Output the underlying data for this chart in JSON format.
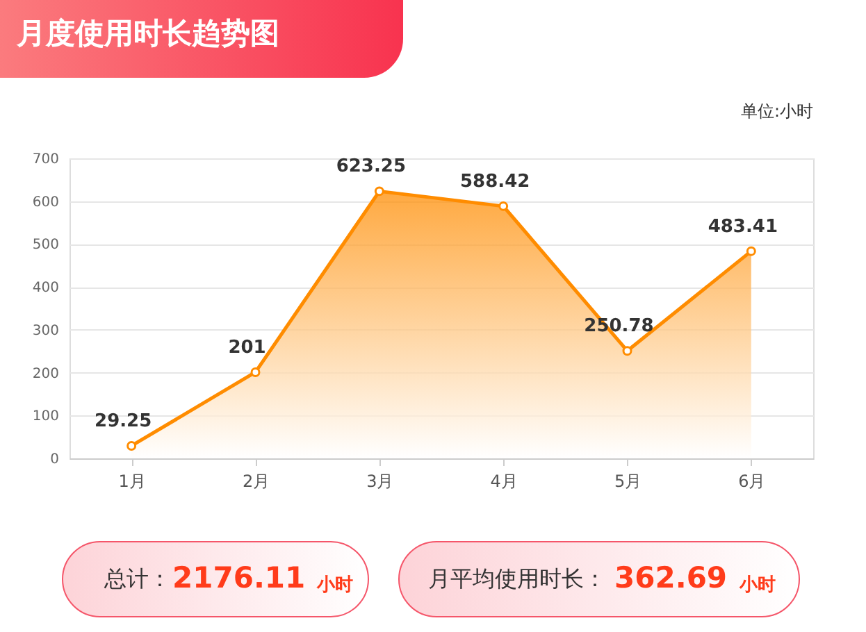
{
  "chart_data": {
    "type": "area",
    "title": "月度使用时长趋势图",
    "categories": [
      "1月",
      "2月",
      "3月",
      "4月",
      "5月",
      "6月"
    ],
    "series": [
      {
        "type": "area",
        "color": "#ff8c00",
        "values": [
          29.25,
          201,
          623.25,
          588.42,
          250.78,
          483.41
        ]
      }
    ],
    "ylim": [
      0,
      700
    ],
    "yticks": [
      0,
      100,
      200,
      300,
      400,
      500,
      600,
      700
    ],
    "grid": "y",
    "legend": false,
    "marker": "circle",
    "line_style": "solid",
    "data_labels": true,
    "annotations": [
      "单位:小时",
      "总计：",
      "2176.11",
      "小时",
      "月平均使用时长：",
      "362.69",
      "小时"
    ]
  }
}
